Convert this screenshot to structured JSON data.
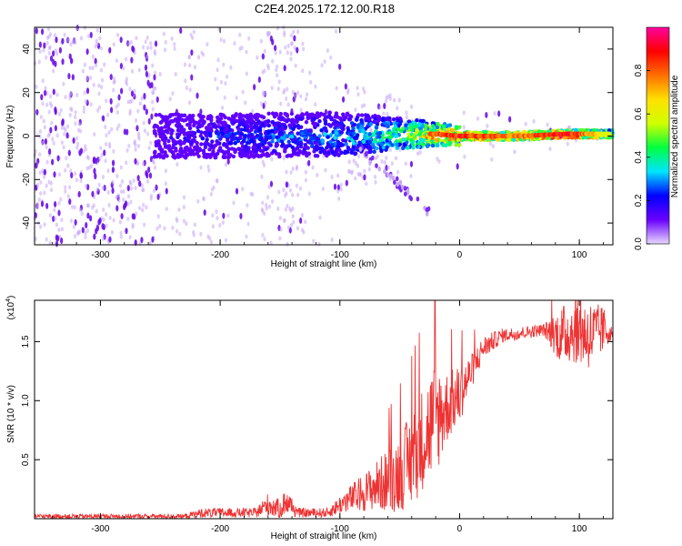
{
  "figure": {
    "title": "C2E4.2025.172.12.00.R18"
  },
  "chart_data": [
    {
      "type": "heatmap",
      "title": "C2E4.2025.172.12.00.R18",
      "xlabel": "Height of straight line (km)",
      "ylabel": "Frequency (Hz)",
      "xlim": [
        -355,
        128
      ],
      "ylim": [
        -50,
        50
      ],
      "x_ticks": [
        -300,
        -200,
        -100,
        0,
        100
      ],
      "y_ticks": [
        -40,
        -20,
        0,
        20,
        40
      ],
      "colorbar": {
        "label": "Normalized spectral amplitude",
        "range": [
          0,
          1
        ],
        "ticks": [
          "0.0",
          "0.2",
          "0.4",
          "0.6",
          "0.8"
        ],
        "colors": [
          "#e8d8ff",
          "#6a00ff",
          "#0000ff",
          "#00e5ff",
          "#00ff40",
          "#d0ff00",
          "#ffe000",
          "#ff7000",
          "#ff0000",
          "#ff00a0"
        ]
      },
      "ridge": {
        "description_values": [
          {
            "x": -250,
            "freq": 0,
            "amp": 0.15
          },
          {
            "x": -200,
            "freq": 0,
            "amp": 0.25
          },
          {
            "x": -100,
            "freq": 1,
            "amp": 0.35
          },
          {
            "x": -50,
            "freq": 1,
            "amp": 0.55
          },
          {
            "x": -20,
            "freq": 1,
            "amp": 0.85
          },
          {
            "x": 0,
            "freq": 0,
            "amp": 0.9
          },
          {
            "x": 50,
            "freq": 0,
            "amp": 0.8
          },
          {
            "x": 90,
            "freq": 1,
            "amp": 0.95
          },
          {
            "x": 125,
            "freq": 1,
            "amp": 0.6
          }
        ]
      },
      "grid": false
    },
    {
      "type": "line",
      "xlabel": "Height of straight line (km)",
      "ylabel": "SNR (10 * v/v)",
      "y_multiplier": "(x10",
      "y_multiplier_exp": "4",
      "xlim": [
        -355,
        128
      ],
      "ylim": [
        0,
        1.85
      ],
      "x_ticks": [
        -300,
        -200,
        -100,
        0,
        100
      ],
      "y_ticks": [
        "0.5",
        "1.0",
        "1.5"
      ],
      "series": [
        {
          "color": "#ee3333",
          "envelope": [
            {
              "x": -355,
              "base": 0.02,
              "noise": 0.02
            },
            {
              "x": -230,
              "base": 0.02,
              "noise": 0.02
            },
            {
              "x": -215,
              "base": 0.05,
              "noise": 0.04
            },
            {
              "x": -170,
              "base": 0.05,
              "noise": 0.04
            },
            {
              "x": -160,
              "base": 0.12,
              "noise": 0.1
            },
            {
              "x": -150,
              "base": 0.08,
              "noise": 0.08
            },
            {
              "x": -145,
              "base": 0.15,
              "noise": 0.12
            },
            {
              "x": -135,
              "base": 0.05,
              "noise": 0.04
            },
            {
              "x": -110,
              "base": 0.05,
              "noise": 0.04
            },
            {
              "x": -95,
              "base": 0.15,
              "noise": 0.1
            },
            {
              "x": -75,
              "base": 0.25,
              "noise": 0.18
            },
            {
              "x": -55,
              "base": 0.35,
              "noise": 0.3
            },
            {
              "x": -40,
              "base": 0.5,
              "noise": 0.4
            },
            {
              "x": -30,
              "base": 0.7,
              "noise": 0.45
            },
            {
              "x": -20,
              "base": 0.85,
              "noise": 0.5
            },
            {
              "x": -10,
              "base": 0.95,
              "noise": 0.3
            },
            {
              "x": 0,
              "base": 1.05,
              "noise": 0.25
            },
            {
              "x": 10,
              "base": 1.25,
              "noise": 0.15
            },
            {
              "x": 20,
              "base": 1.45,
              "noise": 0.1
            },
            {
              "x": 35,
              "base": 1.55,
              "noise": 0.06
            },
            {
              "x": 70,
              "base": 1.6,
              "noise": 0.05
            },
            {
              "x": 85,
              "base": 1.55,
              "noise": 0.25
            },
            {
              "x": 95,
              "base": 1.6,
              "noise": 0.28
            },
            {
              "x": 110,
              "base": 1.55,
              "noise": 0.3
            },
            {
              "x": 120,
              "base": 1.6,
              "noise": 0.2
            },
            {
              "x": 128,
              "base": 1.57,
              "noise": 0.03
            }
          ]
        }
      ],
      "grid": false
    }
  ]
}
